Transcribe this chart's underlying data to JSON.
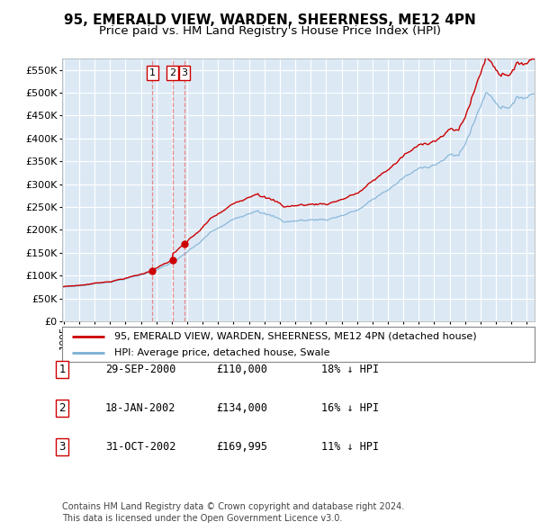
{
  "title": "95, EMERALD VIEW, WARDEN, SHEERNESS, ME12 4PN",
  "subtitle": "Price paid vs. HM Land Registry's House Price Index (HPI)",
  "ylim": [
    0,
    575000
  ],
  "yticks": [
    0,
    50000,
    100000,
    150000,
    200000,
    250000,
    300000,
    350000,
    400000,
    450000,
    500000,
    550000
  ],
  "ytick_labels": [
    "£0",
    "£50K",
    "£100K",
    "£150K",
    "£200K",
    "£250K",
    "£300K",
    "£350K",
    "£400K",
    "£450K",
    "£500K",
    "£550K"
  ],
  "xlim_start": 1994.9,
  "xlim_end": 2025.5,
  "plot_bg_color": "#dce9f5",
  "grid_color": "#ffffff",
  "red_line_color": "#cc0000",
  "blue_line_color": "#7bafd4",
  "dashed_line_color": "#e88888",
  "sale_points": [
    {
      "date_num": 2000.747,
      "price": 110000,
      "label": "1"
    },
    {
      "date_num": 2002.046,
      "price": 134000,
      "label": "2"
    },
    {
      "date_num": 2002.832,
      "price": 169995,
      "label": "3"
    }
  ],
  "legend_entries": [
    "95, EMERALD VIEW, WARDEN, SHEERNESS, ME12 4PN (detached house)",
    "HPI: Average price, detached house, Swale"
  ],
  "table_rows": [
    [
      "1",
      "29-SEP-2000",
      "£110,000",
      "18% ↓ HPI"
    ],
    [
      "2",
      "18-JAN-2002",
      "£134,000",
      "16% ↓ HPI"
    ],
    [
      "3",
      "31-OCT-2002",
      "£169,995",
      "11% ↓ HPI"
    ]
  ],
  "footer": "Contains HM Land Registry data © Crown copyright and database right 2024.\nThis data is licensed under the Open Government Licence v3.0.",
  "title_fontsize": 11,
  "subtitle_fontsize": 9.5
}
